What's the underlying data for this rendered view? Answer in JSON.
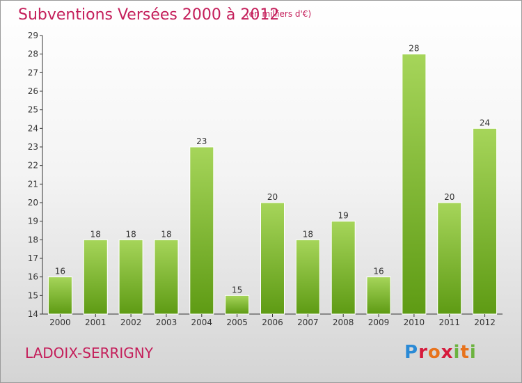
{
  "header": {
    "title": "Subventions Versées 2000 à 2012",
    "unit": "(en milliers d'€)"
  },
  "footer": {
    "commune": "LADOIX-SERRIGNY",
    "logo_text": "Proxiti"
  },
  "colors": {
    "title": "#c41e5a",
    "bar_light": "#a6d55a",
    "bar_dark": "#5e9b14",
    "axis": "#333333"
  },
  "chart_data": {
    "type": "bar",
    "title": "Subventions Versées 2000 à 2012",
    "xlabel": "",
    "ylabel": "",
    "categories": [
      "2000",
      "2001",
      "2002",
      "2003",
      "2004",
      "2005",
      "2006",
      "2007",
      "2008",
      "2009",
      "2010",
      "2011",
      "2012"
    ],
    "values": [
      16,
      18,
      18,
      18,
      23,
      15,
      20,
      18,
      19,
      16,
      28,
      20,
      24
    ],
    "ylim": [
      14,
      29
    ],
    "yticks": [
      14,
      15,
      16,
      17,
      18,
      19,
      20,
      21,
      22,
      23,
      24,
      25,
      26,
      27,
      28,
      29
    ],
    "grid": false,
    "legend": "none"
  }
}
